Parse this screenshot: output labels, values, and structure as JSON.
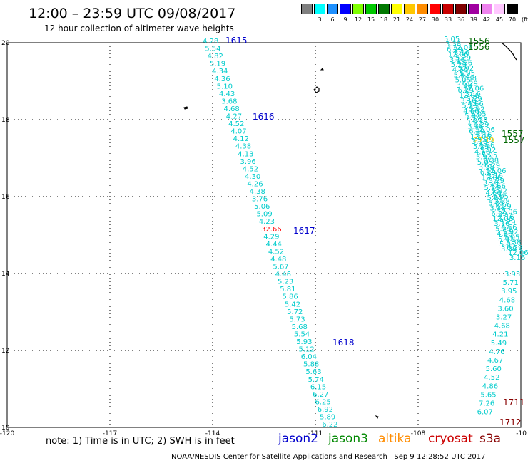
{
  "header": {
    "title": "12:00 – 23:59 UTC 09/08/2017",
    "subtitle": "12 hour collection of altimeter wave heights"
  },
  "scale": {
    "unit": "(ft)",
    "colors": [
      "#808080",
      "#00ffff",
      "#1e90ff",
      "#0000ff",
      "#7fff00",
      "#00c800",
      "#007800",
      "#ffff00",
      "#ffc800",
      "#ff8c00",
      "#ff0000",
      "#c80000",
      "#800000",
      "#a000a0",
      "#ee82ee",
      "#ffc8ff",
      "#000000"
    ],
    "labels": [
      "3",
      "6",
      "9",
      "12",
      "15",
      "18",
      "21",
      "24",
      "27",
      "30",
      "33",
      "36",
      "39",
      "42",
      "45",
      "70"
    ]
  },
  "map": {
    "lon_ticks": [
      "-120",
      "-117",
      "-114",
      "-111",
      "-108",
      "-10"
    ],
    "lat_ticks": [
      "20",
      "18",
      "16",
      "14",
      "12",
      "10"
    ],
    "track_a": {
      "values": [
        "4.28",
        "5.54",
        "4.82",
        "5.19",
        "4.34",
        "4.36",
        "5.10",
        "4.43",
        "3.68",
        "4.68",
        "4.27",
        "4.52",
        "4.07",
        "4.12",
        "4.38",
        "4.13",
        "3.96",
        "4.52",
        "4.30",
        "4.26",
        "4.38",
        "3.76",
        "5.06",
        "5.09",
        "4.23",
        "32.66",
        "4.29",
        "4.44",
        "4.52",
        "4.48",
        "5.67",
        "4.46",
        "5.23",
        "5.81",
        "5.86",
        "5.42",
        "5.72",
        "5.73",
        "5.68",
        "5.54",
        "5.93",
        "5.12",
        "6.04",
        "5.88",
        "5.63",
        "5.74",
        "6.15",
        "6.27",
        "6.25",
        "6.92",
        "5.89",
        "6.22"
      ],
      "pass_labels": [
        "1615",
        "1616",
        "1617",
        "1618"
      ]
    },
    "track_b": {
      "values": [
        "5.05",
        "3.38",
        "6.29",
        "12.06",
        "3.16",
        "5.29",
        "4.66",
        "5.92",
        "4.39",
        "3.93",
        "5.71",
        "3.95",
        "4.68",
        "3.60",
        "3.27",
        "4.68",
        "4.21",
        "5.49",
        "4.76",
        "4.67",
        "5.60",
        "4.52",
        "4.86",
        "5.65",
        "7.26",
        "6.07"
      ],
      "yellow_value": "27.19",
      "pass_labels": [
        "1556",
        "1556",
        "1557",
        "1557",
        "1711",
        "1712"
      ]
    }
  },
  "footer": {
    "note": "note: 1) Time is in UTC; 2) SWH is in feet",
    "missions": [
      {
        "name": "jason2",
        "color": "#0000cc"
      },
      {
        "name": "jason3",
        "color": "#008800"
      },
      {
        "name": "altika",
        "color": "#ff8c00"
      },
      {
        "name": "cryosat",
        "color": "#cc0000"
      },
      {
        "name": "s3a",
        "color": "#880000"
      }
    ],
    "credit": "NOAA/NESDIS Center for Satellite Applications and Research",
    "timestamp": "Sep  9 12:28:52 UTC 2017"
  }
}
